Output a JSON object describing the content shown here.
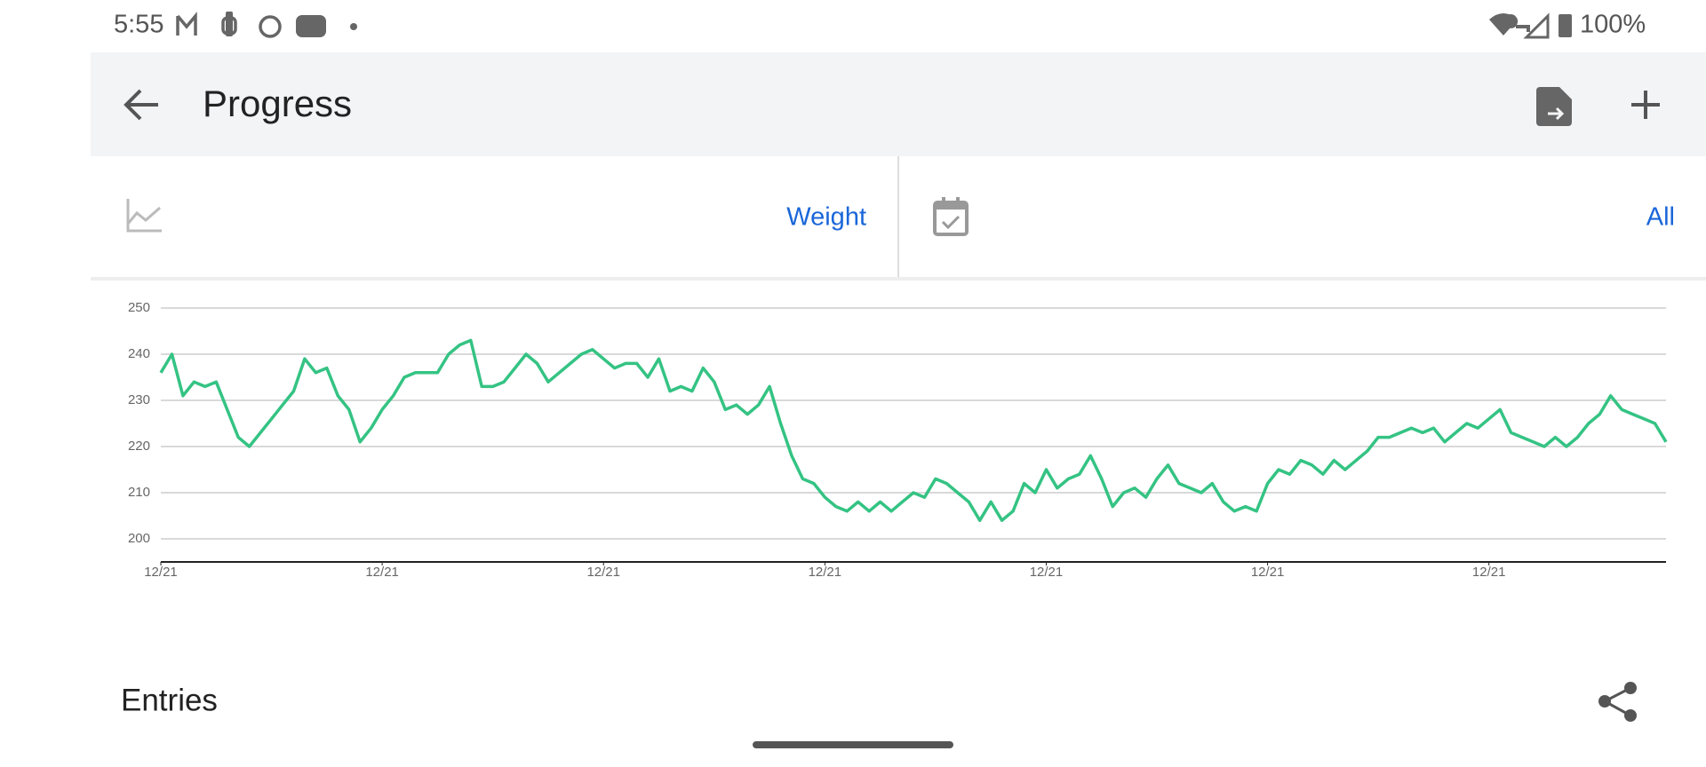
{
  "status_bar": {
    "time": "5:55",
    "battery": "100%"
  },
  "app_bar": {
    "title": "Progress"
  },
  "selectors": {
    "metric": "Weight",
    "range": "All"
  },
  "chart_data": {
    "type": "line",
    "color": "#34c383",
    "grid": true,
    "xlim": [
      0,
      136
    ],
    "xticks": [
      {
        "value": 0,
        "label": "12/21"
      },
      {
        "value": 20,
        "label": "12/21"
      },
      {
        "value": 40,
        "label": "12/21"
      },
      {
        "value": 60,
        "label": "12/21"
      },
      {
        "value": 80,
        "label": "12/21"
      },
      {
        "value": 100,
        "label": "12/21"
      },
      {
        "value": 120,
        "label": "12/21"
      }
    ],
    "ylim": [
      195,
      250
    ],
    "yticks": [
      200,
      210,
      220,
      230,
      240,
      250
    ],
    "values": [
      236,
      240,
      231,
      234,
      233,
      234,
      228,
      222,
      220,
      223,
      226,
      229,
      232,
      239,
      236,
      237,
      231,
      228,
      221,
      224,
      228,
      231,
      235,
      236,
      236,
      236,
      240,
      242,
      243,
      233,
      233,
      234,
      237,
      240,
      238,
      234,
      236,
      238,
      240,
      241,
      239,
      237,
      238,
      238,
      235,
      239,
      232,
      233,
      232,
      237,
      234,
      228,
      229,
      227,
      229,
      233,
      225,
      218,
      213,
      212,
      209,
      207,
      206,
      208,
      206,
      208,
      206,
      208,
      210,
      209,
      213,
      212,
      210,
      208,
      204,
      208,
      204,
      206,
      212,
      210,
      215,
      211,
      213,
      214,
      218,
      213,
      207,
      210,
      211,
      209,
      213,
      216,
      212,
      211,
      210,
      212,
      208,
      206,
      207,
      206,
      212,
      215,
      214,
      217,
      216,
      214,
      217,
      215,
      217,
      219,
      222,
      222,
      223,
      224,
      223,
      224,
      221,
      223,
      225,
      224,
      226,
      228,
      223,
      222,
      221,
      220,
      222,
      220,
      222,
      225,
      227,
      231,
      228,
      227,
      226,
      225,
      221
    ]
  },
  "entries": {
    "title": "Entries"
  }
}
